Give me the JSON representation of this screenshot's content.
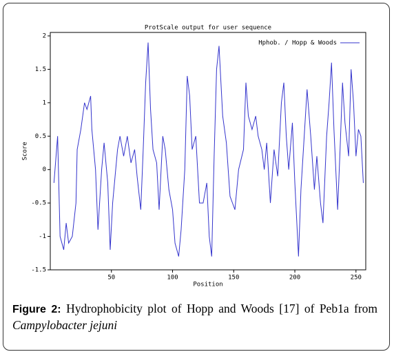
{
  "chart_data": {
    "type": "line",
    "title": "ProtScale output for user sequence",
    "xlabel": "Position",
    "ylabel": "Score",
    "xlim": [
      0,
      258
    ],
    "ylim": [
      -1.5,
      2
    ],
    "xticks": [
      50,
      100,
      150,
      200,
      250
    ],
    "yticks": [
      -1.5,
      -1,
      -0.5,
      0,
      0.5,
      1,
      1.5,
      2
    ],
    "legend": "upper right",
    "series": [
      {
        "name": "Hphob. / Hopp & Woods",
        "color": "#3333cc",
        "x": [
          3,
          6,
          8,
          11,
          13,
          15,
          18,
          21,
          22,
          25,
          28,
          30,
          33,
          34,
          37,
          39,
          42,
          44,
          47,
          49,
          51,
          55,
          57,
          60,
          63,
          66,
          69,
          71,
          74,
          76,
          78,
          80,
          82,
          84,
          87,
          89,
          92,
          94,
          97,
          100,
          102,
          105,
          107,
          110,
          112,
          114,
          116,
          119,
          122,
          125,
          128,
          130,
          132,
          134,
          136,
          138,
          141,
          144,
          147,
          149,
          151,
          154,
          158,
          160,
          162,
          165,
          168,
          170,
          173,
          175,
          177,
          180,
          183,
          186,
          189,
          191,
          193,
          195,
          198,
          200,
          203,
          205,
          207,
          210,
          213,
          216,
          218,
          221,
          223,
          226,
          228,
          230,
          232,
          235,
          237,
          239,
          241,
          244,
          246,
          248,
          250,
          252,
          254,
          256
        ],
        "values": [
          -0.2,
          0.5,
          -1.0,
          -1.2,
          -0.8,
          -1.1,
          -1.0,
          -0.5,
          0.3,
          0.6,
          1.0,
          0.9,
          1.1,
          0.6,
          0.0,
          -0.9,
          0.0,
          0.4,
          -0.2,
          -1.2,
          -0.5,
          0.3,
          0.5,
          0.2,
          0.5,
          0.1,
          0.3,
          -0.1,
          -0.6,
          0.3,
          1.3,
          1.9,
          0.9,
          0.3,
          0.1,
          -0.6,
          0.5,
          0.3,
          -0.3,
          -0.6,
          -1.1,
          -1.3,
          -0.9,
          0.0,
          1.4,
          1.1,
          0.3,
          0.5,
          -0.5,
          -0.5,
          -0.2,
          -1.0,
          -1.3,
          0.2,
          1.5,
          1.85,
          0.8,
          0.4,
          -0.4,
          -0.5,
          -0.6,
          0.0,
          0.3,
          1.3,
          0.8,
          0.6,
          0.8,
          0.5,
          0.3,
          0.0,
          0.4,
          -0.5,
          0.3,
          -0.1,
          1.0,
          1.3,
          0.5,
          0.0,
          0.7,
          -0.2,
          -1.3,
          -0.3,
          0.3,
          1.2,
          0.5,
          -0.3,
          0.2,
          -0.5,
          -0.8,
          0.5,
          1.0,
          1.6,
          0.6,
          -0.6,
          0.3,
          1.3,
          0.7,
          0.2,
          1.5,
          1.0,
          0.2,
          0.6,
          0.5,
          -0.2
        ]
      }
    ]
  },
  "caption": {
    "label": "Figure 2:",
    "text": "Hydrophobicity plot of Hopp and Woods [17] of Peb1a from",
    "species": "Campylobacter jejuni"
  }
}
